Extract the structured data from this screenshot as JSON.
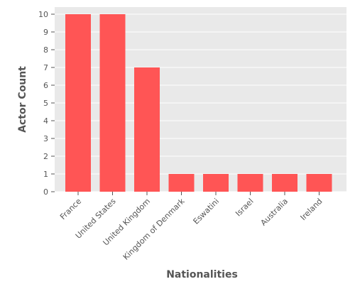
{
  "chart_data": {
    "type": "bar",
    "title": "",
    "xlabel": "Nationalities",
    "ylabel": "Actor Count",
    "categories": [
      "France",
      "United States",
      "United Kingdom",
      "Kingdom of Denmark",
      "Eswatini",
      "Israel",
      "Australia",
      "Ireland"
    ],
    "values": [
      10,
      10,
      7,
      1,
      1,
      1,
      1,
      1
    ],
    "ylim": [
      0,
      10.4
    ],
    "yticks": [
      0,
      1,
      2,
      3,
      4,
      5,
      6,
      7,
      8,
      9,
      10
    ],
    "grid": true,
    "bar_color": "#ff5555",
    "background_color": "#e9e9e9",
    "grid_color": "#ffffff"
  }
}
